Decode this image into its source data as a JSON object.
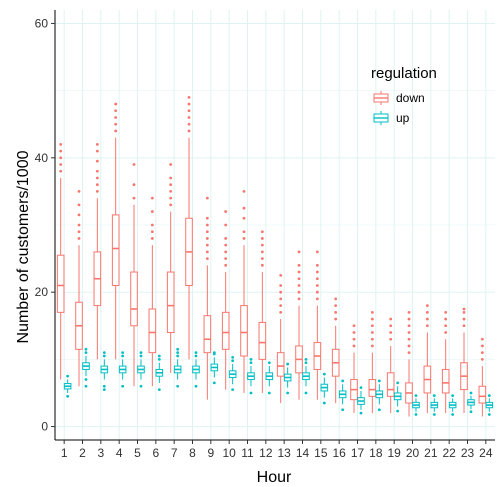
{
  "chart_data": {
    "type": "boxplot",
    "title": "",
    "xlabel": "Hour",
    "ylabel": "Number of customers/1000",
    "ylim": [
      -2,
      62
    ],
    "yticks": [
      0,
      20,
      40,
      60
    ],
    "grid": true,
    "legend": {
      "title": "regulation",
      "placement": "top-right"
    },
    "categories": [
      "1",
      "2",
      "3",
      "4",
      "5",
      "6",
      "7",
      "8",
      "9",
      "10",
      "11",
      "12",
      "13",
      "14",
      "15",
      "16",
      "17",
      "18",
      "19",
      "20",
      "21",
      "22",
      "23",
      "24"
    ],
    "series": [
      {
        "name": "down",
        "color": "#F8766D",
        "boxes": [
          {
            "q1": 17,
            "median": 21,
            "q3": 25.5,
            "wlo": 7,
            "whi": 37,
            "outliers": [
              38,
              39,
              40,
              41,
              42
            ]
          },
          {
            "q1": 11.5,
            "median": 15,
            "q3": 18.5,
            "wlo": 6,
            "whi": 27,
            "outliers": [
              28,
              29,
              30,
              31.5,
              33,
              35
            ]
          },
          {
            "q1": 18,
            "median": 22,
            "q3": 26,
            "wlo": 10,
            "whi": 34,
            "outliers": [
              35,
              36,
              37,
              38,
              39.5,
              41,
              42
            ]
          },
          {
            "q1": 21,
            "median": 26.5,
            "q3": 31.5,
            "wlo": 10,
            "whi": 43,
            "outliers": [
              44,
              45,
              46,
              47,
              48
            ]
          },
          {
            "q1": 15,
            "median": 17.5,
            "q3": 23,
            "wlo": 6,
            "whi": 33,
            "outliers": [
              34,
              36,
              39
            ]
          },
          {
            "q1": 11,
            "median": 14,
            "q3": 17.5,
            "wlo": 6,
            "whi": 27,
            "outliers": [
              28,
              29,
              30,
              32,
              34
            ]
          },
          {
            "q1": 14,
            "median": 18,
            "q3": 23,
            "wlo": 8,
            "whi": 32,
            "outliers": [
              33,
              34,
              35,
              36,
              37,
              39
            ]
          },
          {
            "q1": 21,
            "median": 26,
            "q3": 31,
            "wlo": 10,
            "whi": 43,
            "outliers": [
              44,
              45,
              46,
              47,
              48,
              49
            ]
          },
          {
            "q1": 11,
            "median": 13,
            "q3": 16.5,
            "wlo": 4,
            "whi": 24,
            "outliers": [
              25,
              26,
              27,
              28,
              29,
              30,
              31,
              34
            ]
          },
          {
            "q1": 11.5,
            "median": 14,
            "q3": 17,
            "wlo": 5.5,
            "whi": 23,
            "outliers": [
              24,
              25,
              26,
              27,
              28,
              30,
              32
            ]
          },
          {
            "q1": 10.5,
            "median": 14,
            "q3": 18,
            "wlo": 5,
            "whi": 27,
            "outliers": [
              28,
              29,
              31,
              32.5,
              35
            ]
          },
          {
            "q1": 10,
            "median": 12.5,
            "q3": 15.5,
            "wlo": 5,
            "whi": 23,
            "outliers": [
              24,
              25,
              26,
              27,
              28,
              29
            ]
          },
          {
            "q1": 7.5,
            "median": 9,
            "q3": 11,
            "wlo": 3.5,
            "whi": 16,
            "outliers": [
              17,
              18,
              19,
              20,
              21,
              22.5
            ]
          },
          {
            "q1": 8,
            "median": 10,
            "q3": 12,
            "wlo": 4,
            "whi": 18,
            "outliers": [
              19,
              20,
              21,
              22,
              23,
              24,
              26
            ]
          },
          {
            "q1": 8.5,
            "median": 10.5,
            "q3": 12.5,
            "wlo": 4,
            "whi": 18,
            "outliers": [
              19,
              20,
              21,
              22,
              23,
              24,
              26
            ]
          },
          {
            "q1": 7.5,
            "median": 9.5,
            "q3": 11.5,
            "wlo": 3.5,
            "whi": 15,
            "outliers": [
              16,
              17,
              18,
              19
            ]
          },
          {
            "q1": 4,
            "median": 5.5,
            "q3": 7,
            "wlo": 2,
            "whi": 11,
            "outliers": [
              12,
              13,
              14,
              15
            ]
          },
          {
            "q1": 4.5,
            "median": 5.5,
            "q3": 7,
            "wlo": 2,
            "whi": 11,
            "outliers": [
              12,
              13,
              14,
              15,
              16,
              17
            ]
          },
          {
            "q1": 4.5,
            "median": 5.5,
            "q3": 8,
            "wlo": 2,
            "whi": 12,
            "outliers": [
              13,
              14,
              15,
              16
            ]
          },
          {
            "q1": 3.5,
            "median": 5,
            "q3": 6.5,
            "wlo": 1.5,
            "whi": 10,
            "outliers": [
              11,
              12,
              13,
              14,
              15,
              16,
              17
            ]
          },
          {
            "q1": 5,
            "median": 7,
            "q3": 9,
            "wlo": 2,
            "whi": 14,
            "outliers": [
              15,
              16,
              17,
              18
            ]
          },
          {
            "q1": 5,
            "median": 6.5,
            "q3": 8.5,
            "wlo": 2,
            "whi": 13,
            "outliers": [
              14,
              15,
              16,
              17
            ]
          },
          {
            "q1": 5.5,
            "median": 7.5,
            "q3": 9.5,
            "wlo": 2,
            "whi": 14,
            "outliers": [
              15,
              16,
              17,
              17.5
            ]
          },
          {
            "q1": 3.5,
            "median": 4.5,
            "q3": 6,
            "wlo": 1.5,
            "whi": 9,
            "outliers": [
              10,
              11,
              12,
              13
            ]
          }
        ]
      },
      {
        "name": "up",
        "color": "#00BFC4",
        "boxes": [
          {
            "q1": 5.6,
            "median": 6,
            "q3": 6.4,
            "wlo": 5,
            "whi": 7,
            "outliers": [
              4.5,
              7.5
            ]
          },
          {
            "q1": 8.5,
            "median": 9,
            "q3": 9.5,
            "wlo": 7.5,
            "whi": 10.5,
            "outliers": [
              6,
              7,
              11,
              11.5
            ]
          },
          {
            "q1": 8,
            "median": 8.5,
            "q3": 9,
            "wlo": 7,
            "whi": 10,
            "outliers": [
              5.5,
              6,
              10.5,
              11
            ]
          },
          {
            "q1": 8,
            "median": 8.5,
            "q3": 9,
            "wlo": 7,
            "whi": 10,
            "outliers": [
              6,
              10.5,
              11
            ]
          },
          {
            "q1": 8,
            "median": 8.5,
            "q3": 9,
            "wlo": 7,
            "whi": 10,
            "outliers": [
              6,
              10.5,
              11
            ]
          },
          {
            "q1": 7.5,
            "median": 8,
            "q3": 8.5,
            "wlo": 6.5,
            "whi": 9.5,
            "outliers": [
              5.5,
              10,
              10.5
            ]
          },
          {
            "q1": 8,
            "median": 8.5,
            "q3": 9,
            "wlo": 7,
            "whi": 10,
            "outliers": [
              6,
              10.5,
              11,
              11.5
            ]
          },
          {
            "q1": 8,
            "median": 8.5,
            "q3": 9,
            "wlo": 7,
            "whi": 10,
            "outliers": [
              6,
              10.5,
              11
            ]
          },
          {
            "q1": 8.3,
            "median": 8.8,
            "q3": 9.3,
            "wlo": 7.3,
            "whi": 10.3,
            "outliers": [
              6.5,
              10.8,
              11
            ]
          },
          {
            "q1": 7.3,
            "median": 7.8,
            "q3": 8.3,
            "wlo": 6.3,
            "whi": 9.3,
            "outliers": [
              5.5,
              9.8,
              10.3
            ]
          },
          {
            "q1": 7,
            "median": 7.5,
            "q3": 8,
            "wlo": 6,
            "whi": 9,
            "outliers": [
              5,
              9.5,
              10
            ]
          },
          {
            "q1": 7,
            "median": 7.5,
            "q3": 8,
            "wlo": 6,
            "whi": 9,
            "outliers": [
              5,
              9.5
            ]
          },
          {
            "q1": 6.8,
            "median": 7.3,
            "q3": 7.8,
            "wlo": 5.8,
            "whi": 8.8,
            "outliers": [
              5,
              9.3
            ]
          },
          {
            "q1": 7,
            "median": 7.5,
            "q3": 8,
            "wlo": 6,
            "whi": 9,
            "outliers": [
              5,
              9.5,
              10
            ]
          },
          {
            "q1": 5.3,
            "median": 5.8,
            "q3": 6.3,
            "wlo": 4.3,
            "whi": 7.3,
            "outliers": [
              3.5,
              7.8
            ]
          },
          {
            "q1": 4.3,
            "median": 4.8,
            "q3": 5.3,
            "wlo": 3.3,
            "whi": 6.3,
            "outliers": [
              2.5,
              6.8
            ]
          },
          {
            "q1": 3.3,
            "median": 3.8,
            "q3": 4.3,
            "wlo": 2.5,
            "whi": 5.3,
            "outliers": [
              2,
              5.8
            ]
          },
          {
            "q1": 4.3,
            "median": 4.8,
            "q3": 5.3,
            "wlo": 3.3,
            "whi": 6.3,
            "outliers": [
              2.5,
              6.8
            ]
          },
          {
            "q1": 4,
            "median": 4.5,
            "q3": 5,
            "wlo": 3,
            "whi": 6,
            "outliers": [
              2.3,
              6.5
            ]
          },
          {
            "q1": 2.8,
            "median": 3.2,
            "q3": 3.6,
            "wlo": 2.2,
            "whi": 4.2,
            "outliers": [
              1.8,
              4.6
            ]
          },
          {
            "q1": 2.8,
            "median": 3.2,
            "q3": 3.6,
            "wlo": 2.2,
            "whi": 4.2,
            "outliers": [
              1.8,
              4.6
            ]
          },
          {
            "q1": 2.8,
            "median": 3.2,
            "q3": 3.6,
            "wlo": 2.2,
            "whi": 4.2,
            "outliers": [
              1.8,
              4.6
            ]
          },
          {
            "q1": 3.2,
            "median": 3.6,
            "q3": 4,
            "wlo": 2.6,
            "whi": 4.6,
            "outliers": [
              2.2,
              5
            ]
          },
          {
            "q1": 2.8,
            "median": 3.2,
            "q3": 3.6,
            "wlo": 2.2,
            "whi": 4.2,
            "outliers": [
              1.8,
              4.6
            ]
          }
        ]
      }
    ]
  }
}
